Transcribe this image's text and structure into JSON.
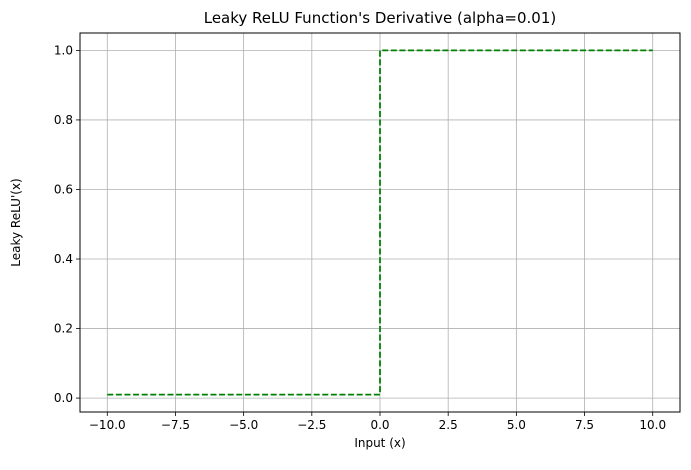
{
  "chart_data": {
    "type": "line",
    "title": "Leaky ReLU Function's Derivative (alpha=0.01)",
    "xlabel": "Input (x)",
    "ylabel": "Leaky ReLU'(x)",
    "xlim": [
      -11,
      11
    ],
    "ylim": [
      -0.04,
      1.05
    ],
    "xticks": [
      -10.0,
      -7.5,
      -5.0,
      -2.5,
      0.0,
      2.5,
      5.0,
      7.5,
      10.0
    ],
    "xtick_labels": [
      "−10.0",
      "−7.5",
      "−5.0",
      "−2.5",
      "0.0",
      "2.5",
      "5.0",
      "7.5",
      "10.0"
    ],
    "yticks": [
      0.0,
      0.2,
      0.4,
      0.6,
      0.8,
      1.0
    ],
    "ytick_labels": [
      "0.0",
      "0.2",
      "0.4",
      "0.6",
      "0.8",
      "1.0"
    ],
    "grid": true,
    "series": [
      {
        "x": [
          -10,
          0,
          0,
          10
        ],
        "y": [
          0.01,
          0.01,
          1.0,
          1.0
        ],
        "color": "#008000",
        "linestyle": "dashed"
      }
    ]
  }
}
